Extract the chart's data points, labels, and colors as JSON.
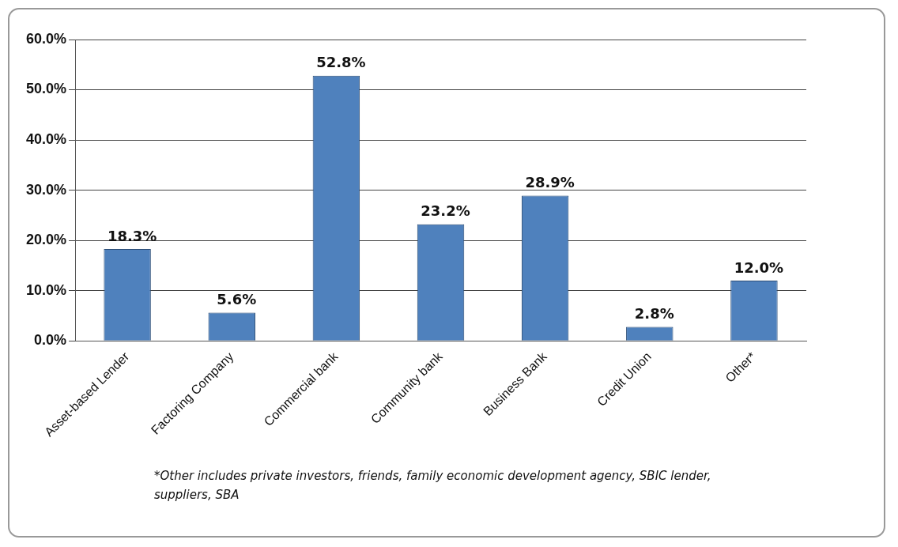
{
  "chart_data": {
    "type": "bar",
    "categories": [
      "Asset-based Lender",
      "Factoring Company",
      "Commercial bank",
      "Community bank",
      "Business Bank",
      "Credit Union",
      "Other*"
    ],
    "values": [
      18.3,
      5.6,
      52.8,
      23.2,
      28.9,
      2.8,
      12.0
    ],
    "value_labels": [
      "18.3%",
      "5.6%",
      "52.8%",
      "23.2%",
      "28.9%",
      "2.8%",
      "12.0%"
    ],
    "color": "#4f81bd",
    "ylim": [
      0,
      60
    ],
    "yticks": [
      {
        "value": 0,
        "label": "0.0%"
      },
      {
        "value": 10,
        "label": "10.0%"
      },
      {
        "value": 20,
        "label": "20.0%"
      },
      {
        "value": 30,
        "label": "30.0%"
      },
      {
        "value": 40,
        "label": "40.0%"
      },
      {
        "value": 50,
        "label": "50.0%"
      },
      {
        "value": 60,
        "label": "60.0%"
      }
    ],
    "grid": "y",
    "annotations": [
      "*Other includes private investors, friends, family economic development agency, SBIC lender, suppliers, SBA"
    ]
  }
}
